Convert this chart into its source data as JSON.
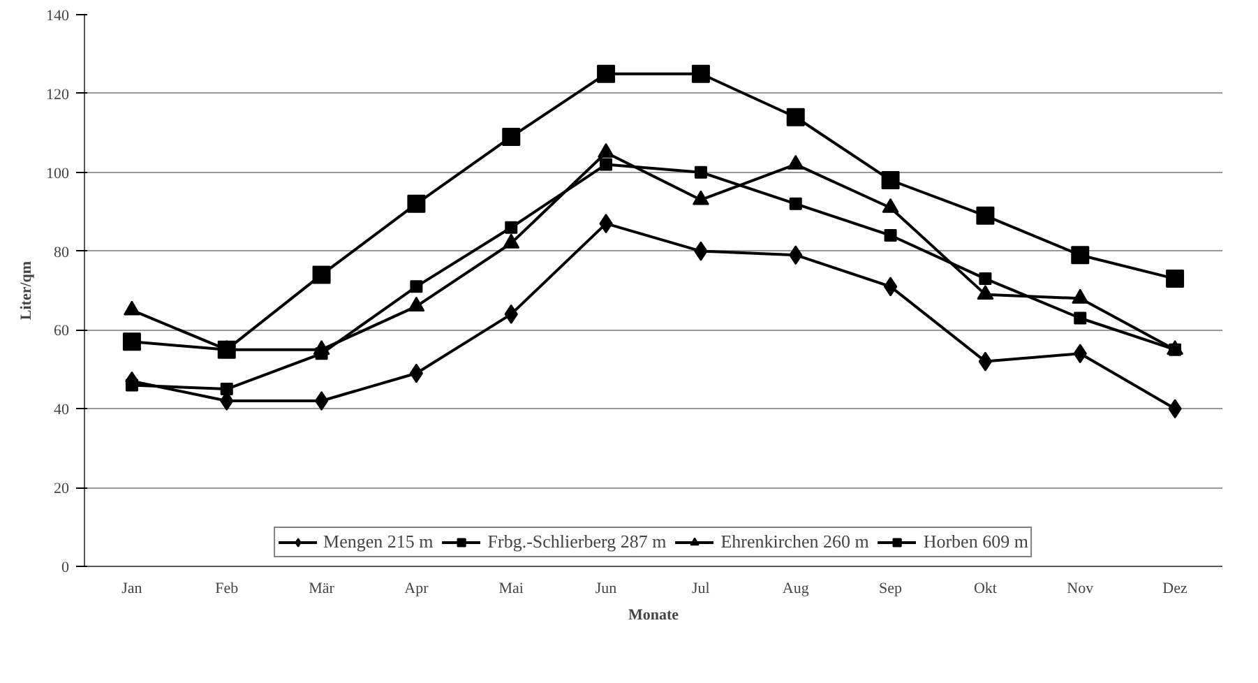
{
  "chart_data": {
    "type": "line",
    "xlabel": "Monate",
    "ylabel": "Liter/qm",
    "categories": [
      "Jan",
      "Feb",
      "Mär",
      "Apr",
      "Mai",
      "Jun",
      "Jul",
      "Aug",
      "Sep",
      "Okt",
      "Nov",
      "Dez"
    ],
    "ylim": [
      0,
      140
    ],
    "yticks": [
      0,
      20,
      40,
      60,
      80,
      100,
      120,
      140
    ],
    "grid": "y",
    "legend": "bottom",
    "line_style": "solid",
    "series": [
      {
        "name": "Mengen 215 m",
        "color": "#000000",
        "marker": "diamond",
        "values": [
          47,
          42,
          42,
          49,
          64,
          87,
          80,
          79,
          71,
          52,
          54,
          40
        ]
      },
      {
        "name": "Frbg.-Schlierberg 287 m",
        "color": "#000000",
        "marker": "square",
        "values": [
          46,
          45,
          54,
          71,
          86,
          102,
          100,
          92,
          84,
          73,
          63,
          55
        ]
      },
      {
        "name": "Ehrenkirchen 260 m",
        "color": "#000000",
        "marker": "triangle",
        "values": [
          65,
          55,
          55,
          66,
          82,
          105,
          93,
          102,
          91,
          69,
          68,
          55
        ]
      },
      {
        "name": "Horben 609 m",
        "color": "#000000",
        "marker": "square",
        "values": [
          57,
          55,
          74,
          92,
          109,
          125,
          125,
          114,
          98,
          89,
          79,
          73
        ]
      }
    ]
  }
}
